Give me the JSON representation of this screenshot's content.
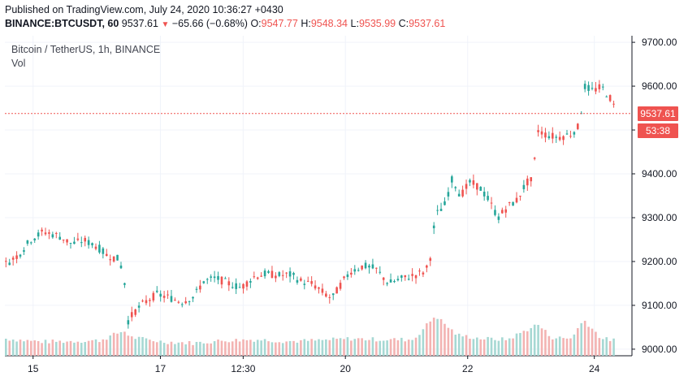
{
  "header": {
    "published": "Published on TradingView.com, July 24, 2020 10:36:27 +0430",
    "symbol": "BINANCE:BTCUSDT, 60",
    "last": "9537.61",
    "change": "−65.66 (−0.68%)",
    "o_label": "O:",
    "o_value": "9547.77",
    "h_label": "H:",
    "h_value": "9548.34",
    "l_label": "L:",
    "l_value": "9535.99",
    "c_label": "C:",
    "c_value": "9537.61"
  },
  "legend": {
    "title": "Bitcoin / TetherUS, 1h, BINANCE",
    "vol": "Vol"
  },
  "price_tag": {
    "price": "9537.61",
    "countdown": "53:38"
  },
  "colors": {
    "up": "#26a69a",
    "down": "#ef5350",
    "vol_up": "#a6d8d3",
    "vol_down": "#f3b3b2",
    "grid": "#f0f3fa",
    "axis": "#131722",
    "price_line": "#ef5350"
  },
  "chart_data": {
    "type": "candlestick",
    "title": "Bitcoin / TetherUS, 1h, BINANCE",
    "ylim": [
      8985,
      9715
    ],
    "y_ticks": [
      "9700.00",
      "9600.00",
      "9500.00",
      "9400.00",
      "9300.00",
      "9200.00",
      "9100.00",
      "9000.00"
    ],
    "x_ticks": [
      {
        "label": "15",
        "t": 0.045
      },
      {
        "label": "17",
        "t": 0.248
      },
      {
        "label": "12:30",
        "t": 0.38
      },
      {
        "label": "20",
        "t": 0.543
      },
      {
        "label": "22",
        "t": 0.738
      },
      {
        "label": "24",
        "t": 0.94
      }
    ],
    "last_price": 9537.61,
    "price_series": [
      [
        0.0,
        9195
      ],
      [
        0.02,
        9215
      ],
      [
        0.04,
        9250
      ],
      [
        0.06,
        9268
      ],
      [
        0.085,
        9258
      ],
      [
        0.105,
        9240
      ],
      [
        0.125,
        9248
      ],
      [
        0.145,
        9235
      ],
      [
        0.16,
        9215
      ],
      [
        0.18,
        9205
      ],
      [
        0.188,
        9170
      ],
      [
        0.195,
        9065
      ],
      [
        0.205,
        9085
      ],
      [
        0.22,
        9105
      ],
      [
        0.24,
        9125
      ],
      [
        0.26,
        9118
      ],
      [
        0.28,
        9108
      ],
      [
        0.3,
        9120
      ],
      [
        0.315,
        9155
      ],
      [
        0.335,
        9162
      ],
      [
        0.355,
        9150
      ],
      [
        0.375,
        9140
      ],
      [
        0.395,
        9165
      ],
      [
        0.415,
        9172
      ],
      [
        0.435,
        9168
      ],
      [
        0.455,
        9170
      ],
      [
        0.47,
        9155
      ],
      [
        0.49,
        9148
      ],
      [
        0.505,
        9130
      ],
      [
        0.52,
        9115
      ],
      [
        0.535,
        9150
      ],
      [
        0.55,
        9178
      ],
      [
        0.57,
        9190
      ],
      [
        0.59,
        9183
      ],
      [
        0.61,
        9150
      ],
      [
        0.63,
        9160
      ],
      [
        0.65,
        9168
      ],
      [
        0.665,
        9175
      ],
      [
        0.675,
        9190
      ],
      [
        0.685,
        9305
      ],
      [
        0.7,
        9330
      ],
      [
        0.712,
        9390
      ],
      [
        0.725,
        9350
      ],
      [
        0.74,
        9380
      ],
      [
        0.755,
        9370
      ],
      [
        0.77,
        9340
      ],
      [
        0.785,
        9300
      ],
      [
        0.8,
        9325
      ],
      [
        0.815,
        9340
      ],
      [
        0.83,
        9380
      ],
      [
        0.84,
        9385
      ],
      [
        0.848,
        9500
      ],
      [
        0.86,
        9490
      ],
      [
        0.88,
        9483
      ],
      [
        0.9,
        9490
      ],
      [
        0.915,
        9510
      ],
      [
        0.922,
        9600
      ],
      [
        0.935,
        9590
      ],
      [
        0.95,
        9598
      ],
      [
        0.965,
        9570
      ],
      [
        0.975,
        9535
      ]
    ],
    "volume_series": [
      [
        0.0,
        9022
      ],
      [
        0.03,
        9018
      ],
      [
        0.06,
        9015
      ],
      [
        0.1,
        9016
      ],
      [
        0.15,
        9018
      ],
      [
        0.188,
        9040
      ],
      [
        0.2,
        9025
      ],
      [
        0.25,
        9015
      ],
      [
        0.3,
        9012
      ],
      [
        0.35,
        9018
      ],
      [
        0.4,
        9020
      ],
      [
        0.45,
        9016
      ],
      [
        0.5,
        9018
      ],
      [
        0.55,
        9022
      ],
      [
        0.6,
        9020
      ],
      [
        0.65,
        9020
      ],
      [
        0.685,
        9075
      ],
      [
        0.7,
        9055
      ],
      [
        0.72,
        9030
      ],
      [
        0.76,
        9022
      ],
      [
        0.8,
        9020
      ],
      [
        0.848,
        9055
      ],
      [
        0.87,
        9025
      ],
      [
        0.9,
        9022
      ],
      [
        0.922,
        9065
      ],
      [
        0.935,
        9045
      ],
      [
        0.95,
        9022
      ],
      [
        0.975,
        9018
      ]
    ]
  }
}
